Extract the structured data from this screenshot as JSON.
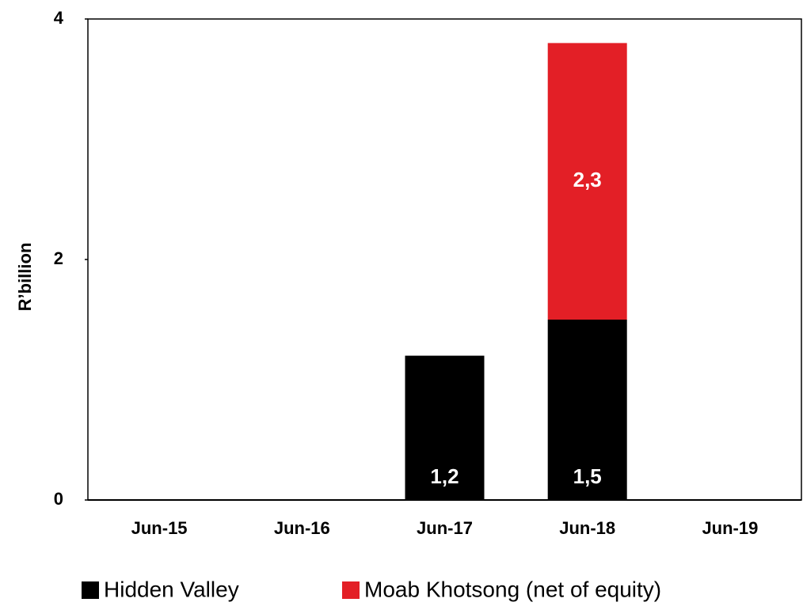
{
  "chart_data": {
    "type": "stacked_bar",
    "ylabel": "R’billion",
    "categories": [
      "Jun-15",
      "Jun-16",
      "Jun-17",
      "Jun-18",
      "Jun-19"
    ],
    "series": [
      {
        "name": "Hidden Valley",
        "color": "#000000",
        "values": [
          null,
          null,
          1.2,
          1.5,
          null
        ],
        "value_labels": [
          null,
          null,
          "1,2",
          "1,5",
          null
        ]
      },
      {
        "name": "Moab Khotsong (net of equity)",
        "color": "#e31f26",
        "values": [
          null,
          null,
          null,
          2.3,
          null
        ],
        "value_labels": [
          null,
          null,
          null,
          "2,3",
          null
        ]
      }
    ],
    "ylim": [
      0,
      4
    ],
    "yticks": [
      0,
      2,
      4
    ],
    "grid": false,
    "legend": "bottom"
  }
}
